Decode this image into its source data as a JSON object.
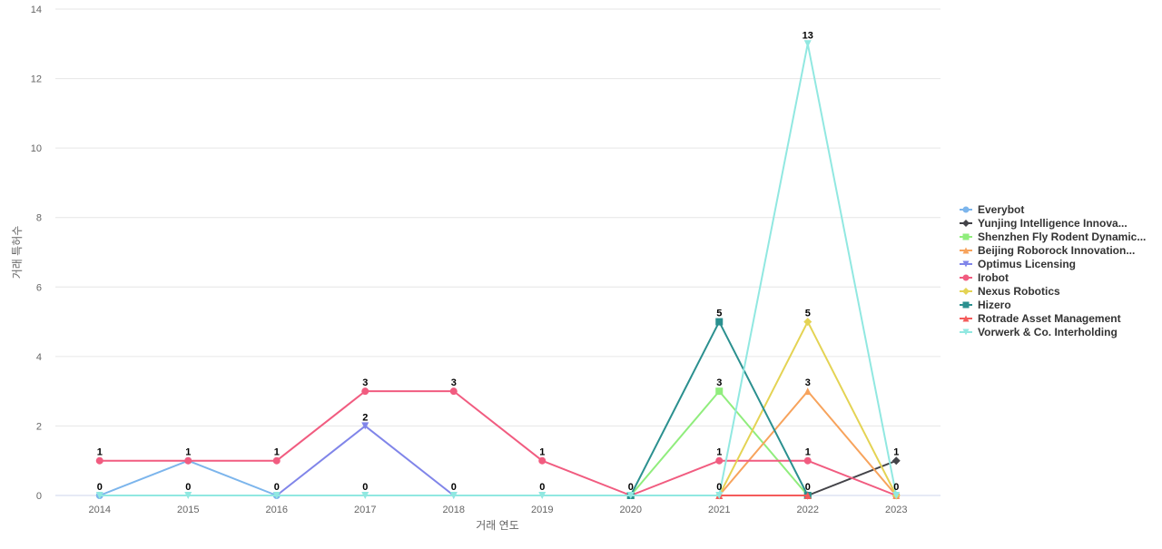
{
  "chart_data": {
    "type": "line",
    "xlabel": "거래 연도",
    "ylabel": "거래 특허수",
    "ylim": [
      0,
      14
    ],
    "yticks": [
      0,
      2,
      4,
      6,
      8,
      10,
      12,
      14
    ],
    "grid": true,
    "legend_position": "right",
    "categories": [
      "2014",
      "2015",
      "2016",
      "2017",
      "2018",
      "2019",
      "2020",
      "2021",
      "2022",
      "2023"
    ],
    "series": [
      {
        "name": "Everybot",
        "color": "#7cb5ec",
        "marker": "circle",
        "values": [
          0,
          1,
          0,
          null,
          null,
          null,
          null,
          null,
          null,
          null
        ]
      },
      {
        "name": "Yunjing Intelligence Innova...",
        "color": "#434348",
        "marker": "diamond",
        "values": [
          null,
          null,
          null,
          null,
          null,
          null,
          null,
          null,
          0,
          1
        ]
      },
      {
        "name": "Shenzhen Fly Rodent Dynamic...",
        "color": "#90ed7d",
        "marker": "square",
        "values": [
          null,
          null,
          null,
          null,
          null,
          null,
          0,
          3,
          0,
          null
        ]
      },
      {
        "name": "Beijing Roborock Innovation...",
        "color": "#f7a35c",
        "marker": "triangle",
        "values": [
          null,
          null,
          null,
          null,
          null,
          null,
          null,
          0,
          3,
          0
        ]
      },
      {
        "name": "Optimus Licensing",
        "color": "#8085e9",
        "marker": "triangle-down",
        "values": [
          null,
          null,
          0,
          2,
          0,
          null,
          null,
          null,
          null,
          null
        ]
      },
      {
        "name": "Irobot",
        "color": "#f15c80",
        "marker": "circle",
        "values": [
          1,
          1,
          1,
          3,
          3,
          1,
          0,
          1,
          1,
          0
        ]
      },
      {
        "name": "Nexus Robotics",
        "color": "#e4d354",
        "marker": "diamond",
        "values": [
          null,
          null,
          null,
          null,
          null,
          null,
          null,
          0,
          5,
          0
        ]
      },
      {
        "name": "Hizero",
        "color": "#2b908f",
        "marker": "square",
        "values": [
          null,
          null,
          null,
          null,
          null,
          null,
          0,
          5,
          0,
          null
        ]
      },
      {
        "name": "Rotrade Asset Management",
        "color": "#f45b5b",
        "marker": "triangle",
        "values": [
          null,
          null,
          null,
          null,
          null,
          null,
          null,
          0,
          0,
          null
        ]
      },
      {
        "name": "Vorwerk & Co. Interholding",
        "color": "#91e8e1",
        "marker": "triangle-down",
        "values": [
          0,
          0,
          0,
          0,
          0,
          0,
          0,
          0,
          13,
          0
        ]
      }
    ],
    "data_labels": [
      {
        "x": "2014",
        "value": "1"
      },
      {
        "x": "2014",
        "value": "0"
      },
      {
        "x": "2015",
        "value": "1"
      },
      {
        "x": "2015",
        "value": "0"
      },
      {
        "x": "2016",
        "value": "1"
      },
      {
        "x": "2016",
        "value": "0"
      },
      {
        "x": "2017",
        "value": "3"
      },
      {
        "x": "2017",
        "value": "2"
      },
      {
        "x": "2017",
        "value": "0"
      },
      {
        "x": "2018",
        "value": "3"
      },
      {
        "x": "2018",
        "value": "0"
      },
      {
        "x": "2019",
        "value": "1"
      },
      {
        "x": "2019",
        "value": "0"
      },
      {
        "x": "2020",
        "value": "0"
      },
      {
        "x": "2021",
        "value": "5"
      },
      {
        "x": "2021",
        "value": "3"
      },
      {
        "x": "2021",
        "value": "1"
      },
      {
        "x": "2021",
        "value": "0"
      },
      {
        "x": "2022",
        "value": "13"
      },
      {
        "x": "2022",
        "value": "5"
      },
      {
        "x": "2022",
        "value": "3"
      },
      {
        "x": "2022",
        "value": "1"
      },
      {
        "x": "2022",
        "value": "0"
      },
      {
        "x": "2023",
        "value": "1"
      },
      {
        "x": "2023",
        "value": "0"
      }
    ]
  }
}
